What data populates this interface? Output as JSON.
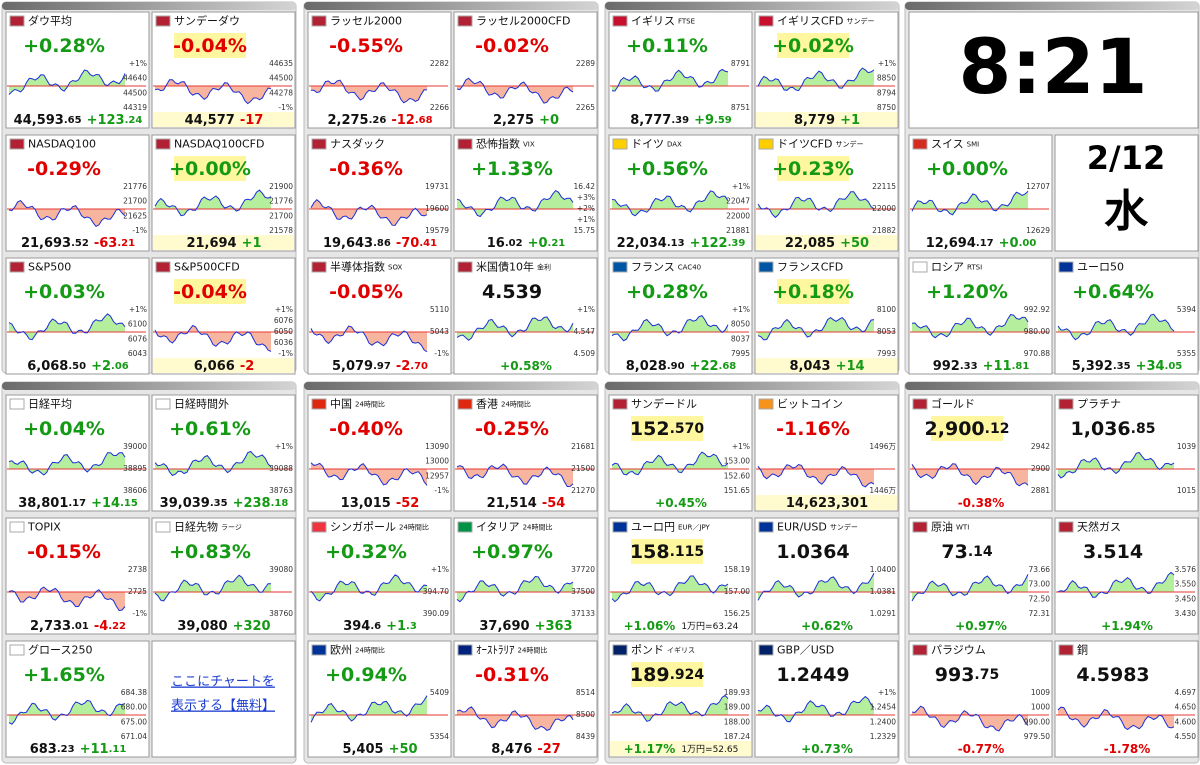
{
  "clock": {
    "time": "8:21",
    "date": "2/12",
    "weekday": "水"
  },
  "link": [
    "ここにチャートを",
    "表示する【無料】"
  ],
  "panels": [
    {
      "tiles": [
        {
          "name": "ダウ平均",
          "top": [
            "+0.28%"
          ],
          "bottom": [
            "44,593",
            ".65"
          ],
          "diff": [
            "+123",
            ".24"
          ],
          "labels": [
            "+1%",
            "44640",
            "44500",
            "44319"
          ]
        },
        {
          "name": "サンデーダウ",
          "top": [
            "-0.04%"
          ],
          "bottom": [
            "44,577"
          ],
          "diff": [
            "-17"
          ],
          "labels": [
            "44635",
            "44500",
            "44278",
            "-1%"
          ]
        },
        {
          "name": "NASDAQ100",
          "top": [
            "-0.29%"
          ],
          "bottom": [
            "21,693",
            ".52"
          ],
          "diff": [
            "-63",
            ".21"
          ],
          "labels": [
            "21776",
            "21700",
            "21625",
            "-1%"
          ]
        },
        {
          "name": "NASDAQ100CFD",
          "top": [
            "+0.00%"
          ],
          "bottom": [
            "21,694"
          ],
          "diff": [
            "+1"
          ],
          "labels": [
            "21900",
            "21776",
            "21700",
            "21578"
          ]
        },
        {
          "name": "S&P500",
          "top": [
            "+0.03%"
          ],
          "bottom": [
            "6,068",
            ".50"
          ],
          "diff": [
            "+2",
            ".06"
          ],
          "labels": [
            "+1%",
            "6100",
            "6076",
            "6043"
          ]
        },
        {
          "name": "S&P500CFD",
          "top": [
            "-0.04%"
          ],
          "bottom": [
            "6,066"
          ],
          "diff": [
            "-2"
          ],
          "labels": [
            "+1%",
            "6076",
            "6050",
            "6036",
            "-1%"
          ]
        }
      ]
    },
    {
      "tiles": [
        {
          "name": "ラッセル2000",
          "top": [
            "-0.55%"
          ],
          "bottom": [
            "2,275",
            ".26"
          ],
          "diff": [
            "-12",
            ".68"
          ],
          "labels": [
            "2282",
            "2266"
          ]
        },
        {
          "name": "ラッセル2000CFD",
          "top": [
            "-0.02%"
          ],
          "bottom": [
            "2,275"
          ],
          "diff": [
            "+0"
          ],
          "labels": [
            "2289",
            "2265"
          ]
        },
        {
          "name": "ナスダック",
          "top": [
            "-0.36%"
          ],
          "bottom": [
            "19,643",
            ".86"
          ],
          "diff": [
            "-70",
            ".41"
          ],
          "labels": [
            "19731",
            "19600",
            "19579"
          ]
        },
        {
          "name": "恐怖指数",
          "tag": "VIX",
          "top": [
            "+1.33%"
          ],
          "bottom": [
            "16",
            ".02"
          ],
          "diff": [
            "+0",
            ".21"
          ],
          "labels": [
            "16.42",
            "+3%",
            "+2%",
            "+1%",
            "15.75"
          ]
        },
        {
          "name": "半導体指数",
          "tag": "SOX",
          "top": [
            "-0.05%"
          ],
          "bottom": [
            "5,079",
            ".97"
          ],
          "diff": [
            "-2",
            ".70"
          ],
          "labels": [
            "5110",
            "5043",
            "-1%"
          ]
        },
        {
          "name": "米国債10年",
          "tag": "金利",
          "top": [
            "4.539"
          ],
          "bottom": [
            "+0.58%"
          ],
          "labels": [
            "+1%",
            "4.547",
            "4.509"
          ]
        }
      ]
    },
    {
      "tiles": [
        {
          "name": "イギリス",
          "tag": "FTSE",
          "top": [
            "+0.11%"
          ],
          "bottom": [
            "8,777",
            ".39"
          ],
          "diff": [
            "+9",
            ".59"
          ],
          "labels": [
            "8791",
            "8751"
          ]
        },
        {
          "name": "イギリスCFD",
          "tag": "サンデー",
          "top": [
            "+0.02%"
          ],
          "bottom": [
            "8,779"
          ],
          "diff": [
            "+1"
          ],
          "labels": [
            "+1%",
            "8850",
            "8794",
            "8750"
          ]
        },
        {
          "name": "ドイツ",
          "tag": "DAX",
          "top": [
            "+0.56%"
          ],
          "bottom": [
            "22,034",
            ".13"
          ],
          "diff": [
            "+122",
            ".39"
          ],
          "labels": [
            "+1%",
            "22047",
            "22000",
            "21881"
          ]
        },
        {
          "name": "ドイツCFD",
          "tag": "サンデー",
          "top": [
            "+0.23%"
          ],
          "bottom": [
            "22,085"
          ],
          "diff": [
            "+50"
          ],
          "labels": [
            "22115",
            "22000",
            "21882"
          ]
        },
        {
          "name": "フランス",
          "tag": "CAC40",
          "top": [
            "+0.28%"
          ],
          "bottom": [
            "8,028",
            ".90"
          ],
          "diff": [
            "+22",
            ".68"
          ],
          "labels": [
            "+1%",
            "8050",
            "8037",
            "7995"
          ]
        },
        {
          "name": "フランスCFD",
          "top": [
            "+0.18%"
          ],
          "bottom": [
            "8,043"
          ],
          "diff": [
            "+14"
          ],
          "labels": [
            "8100",
            "8053",
            "7993"
          ]
        }
      ]
    },
    {
      "tiles": [
        {
          "name": "スイス",
          "tag": "SMI",
          "top": [
            "+0.00%"
          ],
          "bottom": [
            "12,694",
            ".17"
          ],
          "diff": [
            "+0",
            ".00"
          ],
          "labels": [
            "12707",
            "12629"
          ]
        },
        {
          "name": "ロシア",
          "tag": "RTSI",
          "top": [
            "+1.20%"
          ],
          "bottom": [
            "992",
            ".33"
          ],
          "diff": [
            "+11",
            ".81"
          ],
          "labels": [
            "992.92",
            "980.00",
            "970.88"
          ]
        },
        {
          "name": "ユーロ50",
          "top": [
            "+0.64%"
          ],
          "bottom": [
            "5,392",
            ".35"
          ],
          "diff": [
            "+34",
            ".05"
          ],
          "labels": [
            "5394",
            "5355"
          ]
        }
      ]
    },
    {
      "tiles": [
        {
          "name": "日経平均",
          "top": [
            "+0.04%"
          ],
          "bottom": [
            "38,801",
            ".17"
          ],
          "diff": [
            "+14",
            ".15"
          ],
          "labels": [
            "39000",
            "38895",
            "38606"
          ]
        },
        {
          "name": "日経時間外",
          "top": [
            "+0.61%"
          ],
          "bottom": [
            "39,039",
            ".35"
          ],
          "diff": [
            "+238",
            ".18"
          ],
          "labels": [
            "+1%",
            "39088",
            "38763"
          ]
        },
        {
          "name": "TOPIX",
          "top": [
            "-0.15%"
          ],
          "bottom": [
            "2,733",
            ".01"
          ],
          "diff": [
            "-4",
            ".22"
          ],
          "labels": [
            "2738",
            "2725",
            "-1%"
          ]
        },
        {
          "name": "日経先物",
          "tag": "ラージ",
          "top": [
            "+0.83%"
          ],
          "bottom": [
            "39,080"
          ],
          "diff": [
            "+320"
          ],
          "labels": [
            "39080",
            "38760"
          ]
        },
        {
          "name": "グロース250",
          "top": [
            "+1.65%"
          ],
          "bottom": [
            "683",
            ".23"
          ],
          "diff": [
            "+11",
            ".11"
          ],
          "labels": [
            "684.38",
            "680.00",
            "675.00",
            "671.04"
          ]
        }
      ]
    },
    {
      "tiles": [
        {
          "name": "中国",
          "tag": "24時間比",
          "top": [
            "-0.40%"
          ],
          "bottom": [
            "13,015"
          ],
          "diff": [
            "-52"
          ],
          "labels": [
            "13090",
            "13000",
            "12957",
            "-1%"
          ]
        },
        {
          "name": "香港",
          "tag": "24時間比",
          "top": [
            "-0.25%"
          ],
          "bottom": [
            "21,514"
          ],
          "diff": [
            "-54"
          ],
          "labels": [
            "21681",
            "21500",
            "21270"
          ]
        },
        {
          "name": "シンガポール",
          "tag": "24時間比",
          "top": [
            "+0.32%"
          ],
          "bottom": [
            "394",
            ".6"
          ],
          "diff": [
            "+1",
            ".3"
          ],
          "labels": [
            "+1%",
            "394.70",
            "390.09"
          ]
        },
        {
          "name": "イタリア",
          "tag": "24時間比",
          "top": [
            "+0.97%"
          ],
          "bottom": [
            "37,690"
          ],
          "diff": [
            "+363"
          ],
          "labels": [
            "37720",
            "37500",
            "37133"
          ]
        },
        {
          "name": "欧州",
          "tag": "24時間比",
          "top": [
            "+0.94%"
          ],
          "bottom": [
            "5,405"
          ],
          "diff": [
            "+50"
          ],
          "labels": [
            "5409",
            "5354"
          ]
        },
        {
          "name": "ｵｰｽﾄﾗﾘｱ",
          "tag": "24時間比",
          "top": [
            "-0.31%"
          ],
          "bottom": [
            "8,476"
          ],
          "diff": [
            "-27"
          ],
          "labels": [
            "8514",
            "8500",
            "8439"
          ]
        }
      ]
    },
    {
      "tiles": [
        {
          "name": "サンデードル",
          "top": [
            "152",
            ".570"
          ],
          "bottom": [
            "+0.45%"
          ],
          "labels": [
            "+1%",
            "153.00",
            "152.60",
            "151.65"
          ]
        },
        {
          "name": "ビットコイン",
          "top": [
            "-1.16%"
          ],
          "bottom": [
            "14,623,301"
          ],
          "labels": [
            "1496万",
            "1446万"
          ]
        },
        {
          "name": "ユーロ円",
          "tag": "EUR／JPY",
          "top": [
            "158",
            ".115"
          ],
          "bottom": [
            "+1.06%"
          ],
          "note": "1万円=63.24",
          "labels": [
            "158.19",
            "157.00",
            "156.25"
          ]
        },
        {
          "name": "EUR/USD",
          "tag": "サンデー",
          "top": [
            "1.0364"
          ],
          "bottom": [
            "+0.62%"
          ],
          "labels": [
            "1.0400",
            "1.0381",
            "1.0291"
          ]
        },
        {
          "name": "ポンド",
          "tag": "イギリス",
          "top": [
            "189",
            ".924"
          ],
          "bottom": [
            "+1.17%"
          ],
          "note": "1万円=52.65",
          "labels": [
            "189.93",
            "189.00",
            "188.00",
            "187.24"
          ]
        },
        {
          "name": "GBP／USD",
          "top": [
            "1.2449"
          ],
          "bottom": [
            "+0.73%"
          ],
          "labels": [
            "+1%",
            "1.2454",
            "1.2400",
            "1.2329"
          ]
        }
      ]
    },
    {
      "tiles": [
        {
          "name": "ゴールド",
          "top": [
            "2,900",
            ".12"
          ],
          "bottom": [
            "-0.38%"
          ],
          "labels": [
            "2942",
            "2900",
            "2881"
          ]
        },
        {
          "name": "プラチナ",
          "top": [
            "1,036",
            ".85"
          ],
          "labels": [
            "1039",
            "1015"
          ]
        },
        {
          "name": "原油",
          "tag": "WTI",
          "top": [
            "73",
            ".14"
          ],
          "bottom": [
            "+0.97%"
          ],
          "labels": [
            "73.66",
            "73.00",
            "72.50",
            "72.31"
          ]
        },
        {
          "name": "天然ガス",
          "top": [
            "3.514"
          ],
          "bottom": [
            "+1.94%"
          ],
          "labels": [
            "3.576",
            "3.550",
            "3.450",
            "3.430"
          ]
        },
        {
          "name": "パラジウム",
          "top": [
            "993",
            ".75"
          ],
          "bottom": [
            "-0.77%"
          ],
          "labels": [
            "1009",
            "1000",
            "990.00",
            "979.50"
          ]
        },
        {
          "name": "銅",
          "top": [
            "4.5983"
          ],
          "bottom": [
            "-1.78%"
          ],
          "labels": [
            "4.697",
            "4.650",
            "4.600",
            "4.550"
          ]
        }
      ]
    }
  ]
}
